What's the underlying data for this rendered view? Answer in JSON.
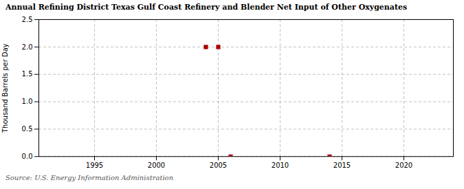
{
  "chart_data": {
    "type": "scatter",
    "title": "Annual Refining District Texas Gulf Coast Refinery and Blender Net Input of Other Oxygenates",
    "ylabel": "Thousand Barrels per Day",
    "annotations": [
      "Source: U.S. Energy Information Administration"
    ],
    "x": [
      2004,
      2005,
      2006,
      2014
    ],
    "values": [
      2.0,
      2.0,
      0.0,
      0.0
    ],
    "color": "#aa0000",
    "marker": "square",
    "xlim": [
      1990.5,
      2024
    ],
    "ylim": [
      0.0,
      2.5
    ],
    "xticks": [
      1995,
      2000,
      2005,
      2010,
      2015,
      2020
    ],
    "yticks": [
      {
        "value": 0.0,
        "label": "0.0"
      },
      0.5,
      {
        "value": 1.0,
        "label": "1.0"
      },
      1.5,
      {
        "value": 2.0,
        "label": "2.0"
      },
      2.5
    ],
    "grid": true
  }
}
